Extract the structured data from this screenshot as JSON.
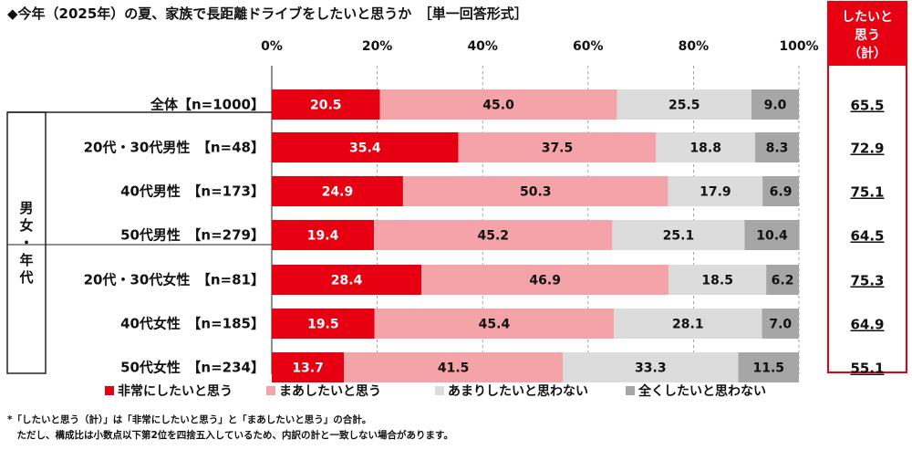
{
  "title": "◆今年（2025年）の夏、家族で長距離ドライブをしたいと思うか　［単一回答形式］",
  "chart_data": {
    "type": "bar",
    "orientation": "horizontal",
    "stacked": true,
    "xlim": [
      0,
      100
    ],
    "tick_labels": [
      "0%",
      "20%",
      "40%",
      "60%",
      "80%",
      "100%"
    ],
    "categories": [
      "全体【n=1000】",
      "20代・30代男性　【n=48】",
      "40代男性　【n=173】",
      "50代男性　【n=279】",
      "20代・30代女性　【n=81】",
      "40代女性　【n=185】",
      "50代女性　【n=234】"
    ],
    "series": [
      {
        "name": "非常にしたいと思う",
        "color": "#e60012",
        "text_color": "#ffffff",
        "values": [
          20.5,
          35.4,
          24.9,
          19.4,
          28.4,
          19.5,
          13.7
        ]
      },
      {
        "name": "まあしたいと思う",
        "color": "#f4a3a8",
        "text_color": "#111111",
        "values": [
          45.0,
          37.5,
          50.3,
          45.2,
          46.9,
          45.4,
          41.5
        ]
      },
      {
        "name": "あまりしたいと思わない",
        "color": "#dcdcdc",
        "text_color": "#111111",
        "values": [
          25.5,
          18.8,
          17.9,
          25.1,
          18.5,
          28.1,
          33.3
        ]
      },
      {
        "name": "全くしたいと思わない",
        "color": "#a6a6a6",
        "text_color": "#111111",
        "values": [
          9.0,
          8.3,
          6.9,
          10.4,
          6.2,
          7.0,
          11.5
        ]
      }
    ],
    "total": {
      "header": [
        "したいと",
        "思う",
        "（計）"
      ],
      "values": [
        "65.5",
        "72.9",
        "75.1",
        "64.5",
        "75.3",
        "64.9",
        "55.1"
      ]
    },
    "group_label": "男女・年代"
  },
  "footnotes": [
    "*「したいと思う（計）」は「非常にしたいと思う」と「まあしたいと思う」の合計。",
    "　ただし、構成比は小数点以下第2位を四捨五入しているため、内訳の計と一致しない場合があります。"
  ]
}
